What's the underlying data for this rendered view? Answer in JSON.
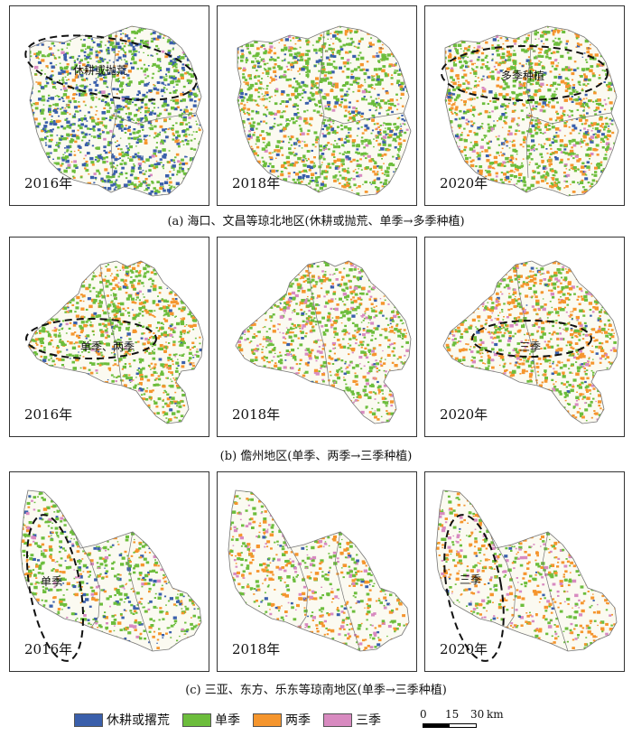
{
  "colors": {
    "fallow": "#3a5fab",
    "single": "#6cbd3c",
    "double": "#f5952d",
    "triple": "#d88ac0",
    "land": "#fbfaf1",
    "outline": "#777777"
  },
  "rows": [
    {
      "caption": "(a) 海口、文昌等琼北地区(休耕或抛荒、单季→多季种植)",
      "panels": [
        {
          "year": "2016年",
          "annotation": "休耕或抛荒"
        },
        {
          "year": "2018年",
          "annotation": ""
        },
        {
          "year": "2020年",
          "annotation": "多季种植"
        }
      ]
    },
    {
      "caption": "(b) 儋州地区(单季、两季→三季种植)",
      "panels": [
        {
          "year": "2016年",
          "annotation": "单季、两季"
        },
        {
          "year": "2018年",
          "annotation": ""
        },
        {
          "year": "2020年",
          "annotation": "三季"
        }
      ]
    },
    {
      "caption": "(c) 三亚、东方、乐东等琼南地区(单季→三季种植)",
      "panels": [
        {
          "year": "2016年",
          "annotation": "单季"
        },
        {
          "year": "2018年",
          "annotation": ""
        },
        {
          "year": "2020年",
          "annotation": "三季"
        }
      ]
    }
  ],
  "legend": [
    {
      "label": "休耕或撂荒",
      "color": "#3a5fab"
    },
    {
      "label": "单季",
      "color": "#6cbd3c"
    },
    {
      "label": "两季",
      "color": "#f5952d"
    },
    {
      "label": "三季",
      "color": "#d88ac0"
    }
  ],
  "scale_bar": {
    "ticks": [
      "0",
      "15",
      "30"
    ],
    "unit": "km"
  }
}
